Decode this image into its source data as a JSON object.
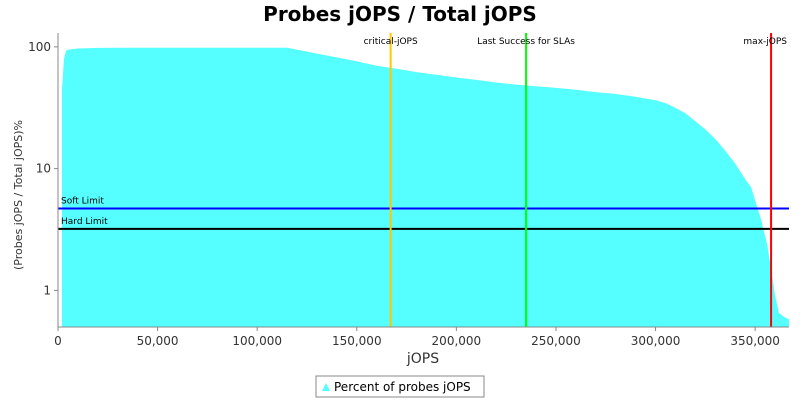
{
  "chart_data": {
    "type": "area",
    "title": "Probes jOPS / Total jOPS",
    "xlabel": "jOPS",
    "ylabel": "(Probes jOPS / Total jOPS)%",
    "y_scale": "log",
    "xlim": [
      0,
      367000
    ],
    "ylim": [
      0.5,
      130
    ],
    "x_ticks": [
      0,
      50000,
      100000,
      150000,
      200000,
      250000,
      300000,
      350000
    ],
    "x_tick_labels": [
      "0",
      "50,000",
      "100,000",
      "150,000",
      "200,000",
      "250,000",
      "300,000",
      "350,000"
    ],
    "y_ticks": [
      1,
      10,
      100
    ],
    "y_tick_labels": [
      "1",
      "10",
      "100"
    ],
    "grid": false,
    "legend_position": "bottom",
    "series": [
      {
        "name": "Percent of probes jOPS",
        "color": "#55ffff",
        "x": [
          2000,
          3000,
          4000,
          5000,
          10000,
          20000,
          40000,
          60000,
          80000,
          100000,
          115000,
          120000,
          130000,
          140000,
          150000,
          160000,
          170000,
          180000,
          190000,
          200000,
          210000,
          220000,
          230000,
          240000,
          250000,
          260000,
          270000,
          280000,
          290000,
          300000,
          305000,
          310000,
          315000,
          318000,
          320000,
          325000,
          330000,
          335000,
          340000,
          345000,
          348000,
          350000,
          353000,
          356000,
          358000,
          360000,
          362000,
          365000,
          367000
        ],
        "values": [
          45,
          80,
          93,
          95,
          97,
          98,
          98.5,
          98.5,
          98.5,
          98.5,
          98.5,
          95,
          88,
          82,
          76,
          70,
          66,
          62,
          59,
          56,
          53.5,
          51,
          49,
          47.5,
          46,
          44.5,
          42.5,
          41,
          39,
          36.5,
          34.5,
          31.5,
          28.5,
          26,
          24.5,
          21,
          17.5,
          14,
          11,
          8.2,
          7,
          5.5,
          3.8,
          2.4,
          1.5,
          0.9,
          0.65,
          0.6,
          0.58
        ]
      }
    ],
    "vertical_markers": [
      {
        "label": "critical-jOPS",
        "x": 167000,
        "color": "#ffc800"
      },
      {
        "label": "Last Success for SLAs",
        "x": 235000,
        "color": "#00ff00"
      },
      {
        "label": "max-jOPS",
        "x": 358000,
        "color": "#ff0000"
      }
    ],
    "horizontal_markers": [
      {
        "label": "Soft Limit",
        "y": 4.7,
        "color": "#0000ff"
      },
      {
        "label": "Hard Limit",
        "y": 3.2,
        "color": "#000000"
      }
    ]
  }
}
